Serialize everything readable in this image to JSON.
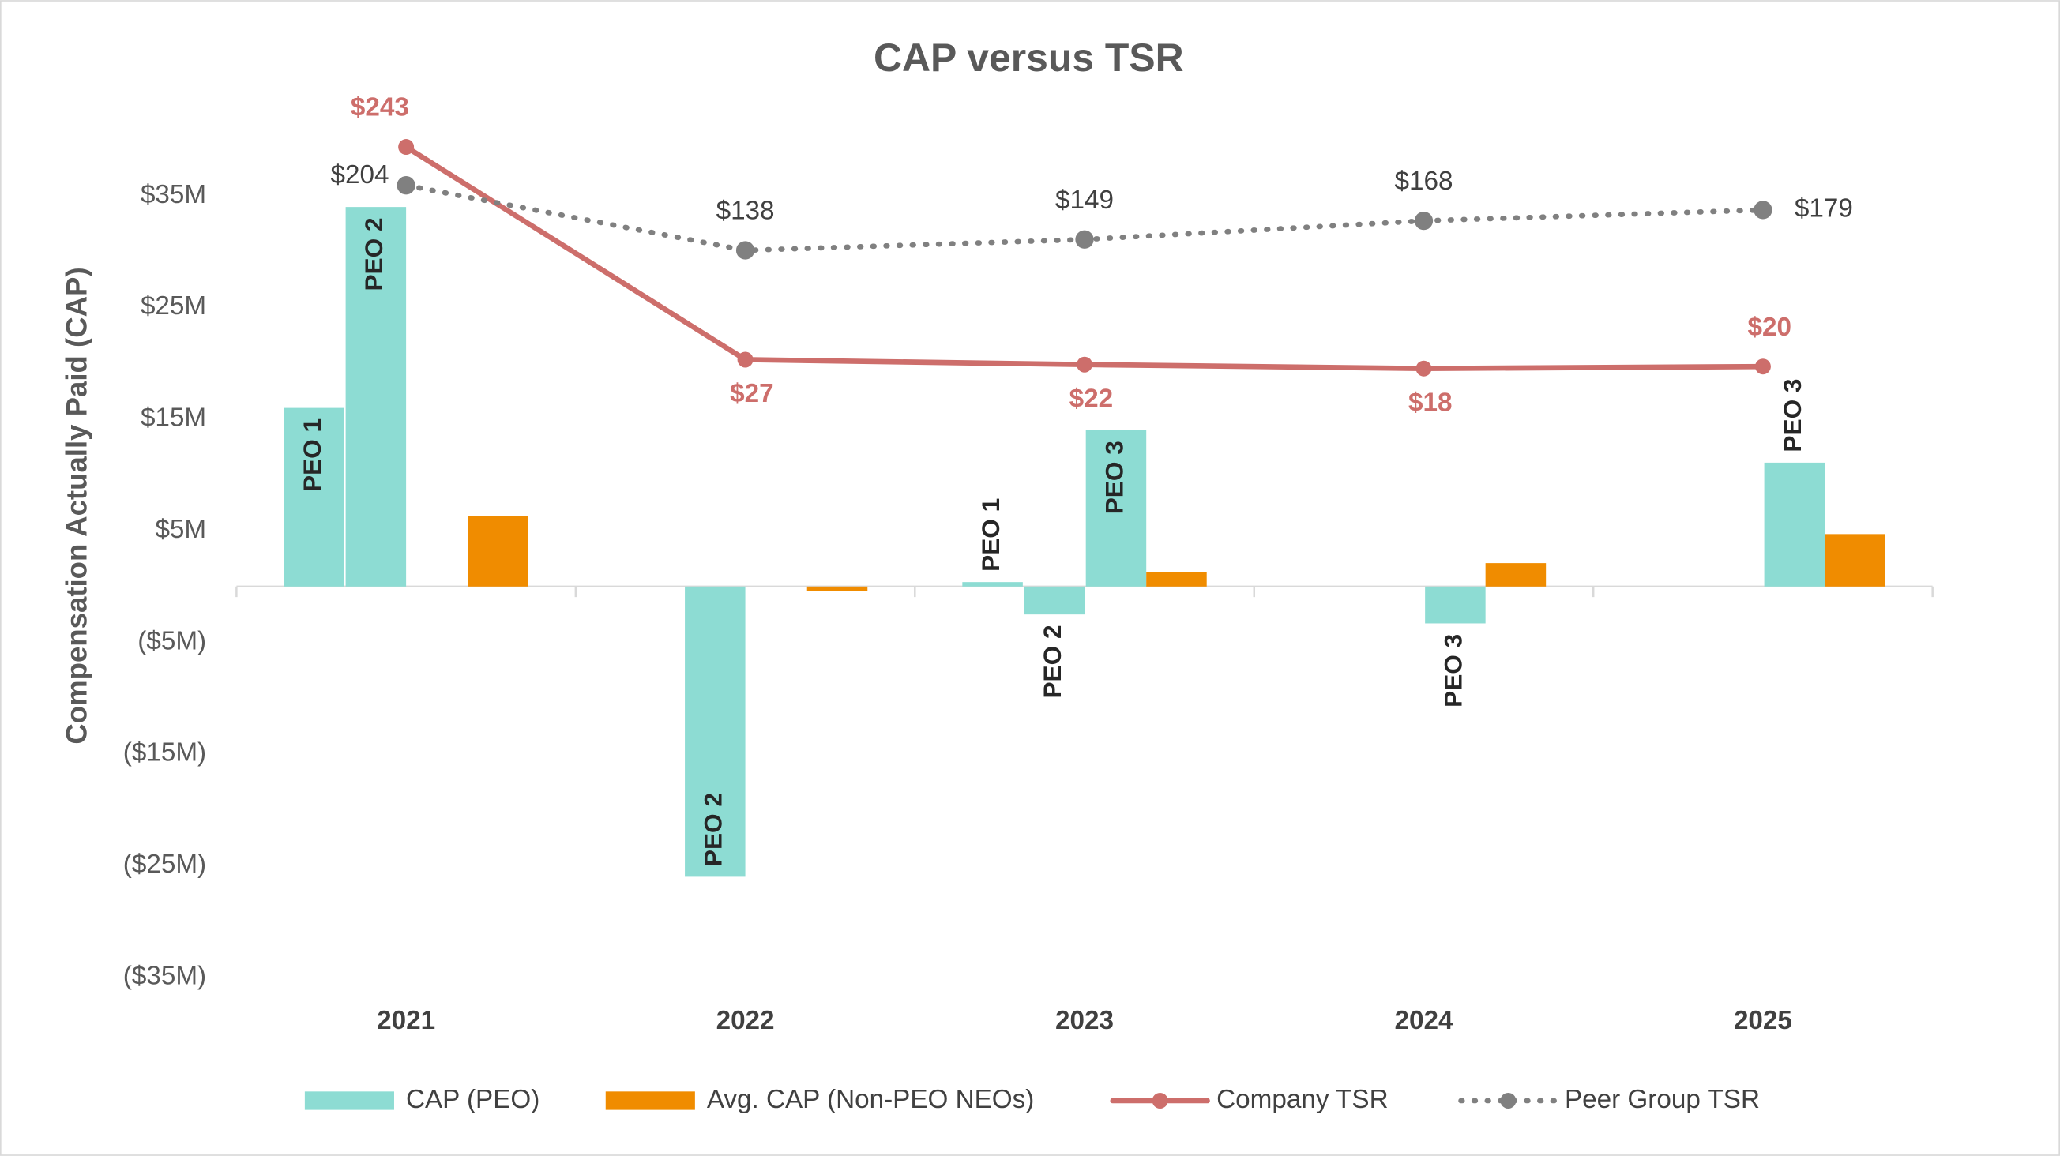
{
  "chart_data": {
    "type": "bar",
    "title": "CAP versus TSR",
    "y_label": "Compensation Actually Paid (CAP)",
    "categories": [
      "2021",
      "2022",
      "2023",
      "2024",
      "2025"
    ],
    "ylim": [
      -35,
      40
    ],
    "yticks": [
      {
        "value": -35,
        "label": "($35M)"
      },
      {
        "value": -25,
        "label": "($25M)"
      },
      {
        "value": -15,
        "label": "($15M)"
      },
      {
        "value": -5,
        "label": "($5M)"
      },
      {
        "value": 5,
        "label": "$5M"
      },
      {
        "value": 15,
        "label": "$15M"
      },
      {
        "value": 25,
        "label": "$25M"
      },
      {
        "value": 35,
        "label": "$35M"
      }
    ],
    "y2lim": [
      -600,
      250
    ],
    "series": [
      {
        "name": "CAP (PEO)",
        "type": "bar",
        "color": "#8ddcd3",
        "values": [
          [
            16,
            34
          ],
          [
            -26
          ],
          [
            0.4,
            -2.5,
            14
          ],
          [
            -3.3
          ],
          [
            11.1
          ]
        ],
        "bar_labels": [
          [
            "PEO 1",
            "PEO 2"
          ],
          [
            "PEO 2"
          ],
          [
            "PEO 1",
            "PEO 2",
            "PEO 3"
          ],
          [
            "PEO 3"
          ],
          [
            "PEO 3"
          ]
        ]
      },
      {
        "name": "Avg. CAP (Non-PEO NEOs)",
        "type": "bar",
        "color": "#f08c00",
        "values": [
          6.3,
          -0.4,
          1.3,
          2.1,
          4.7
        ]
      },
      {
        "name": "Company TSR",
        "type": "line",
        "axis": "y2",
        "color": "#cd6e6b",
        "values": [
          243,
          27,
          22,
          18,
          20
        ],
        "value_labels": [
          "$243",
          "$27",
          "$22",
          "$18",
          "$20"
        ]
      },
      {
        "name": "Peer Group TSR",
        "type": "line",
        "axis": "y2",
        "color": "#808080",
        "dotted": true,
        "values": [
          204,
          138,
          149,
          168,
          179
        ],
        "value_labels": [
          "$204",
          "$138",
          "$149",
          "$168",
          "$179"
        ]
      }
    ]
  }
}
